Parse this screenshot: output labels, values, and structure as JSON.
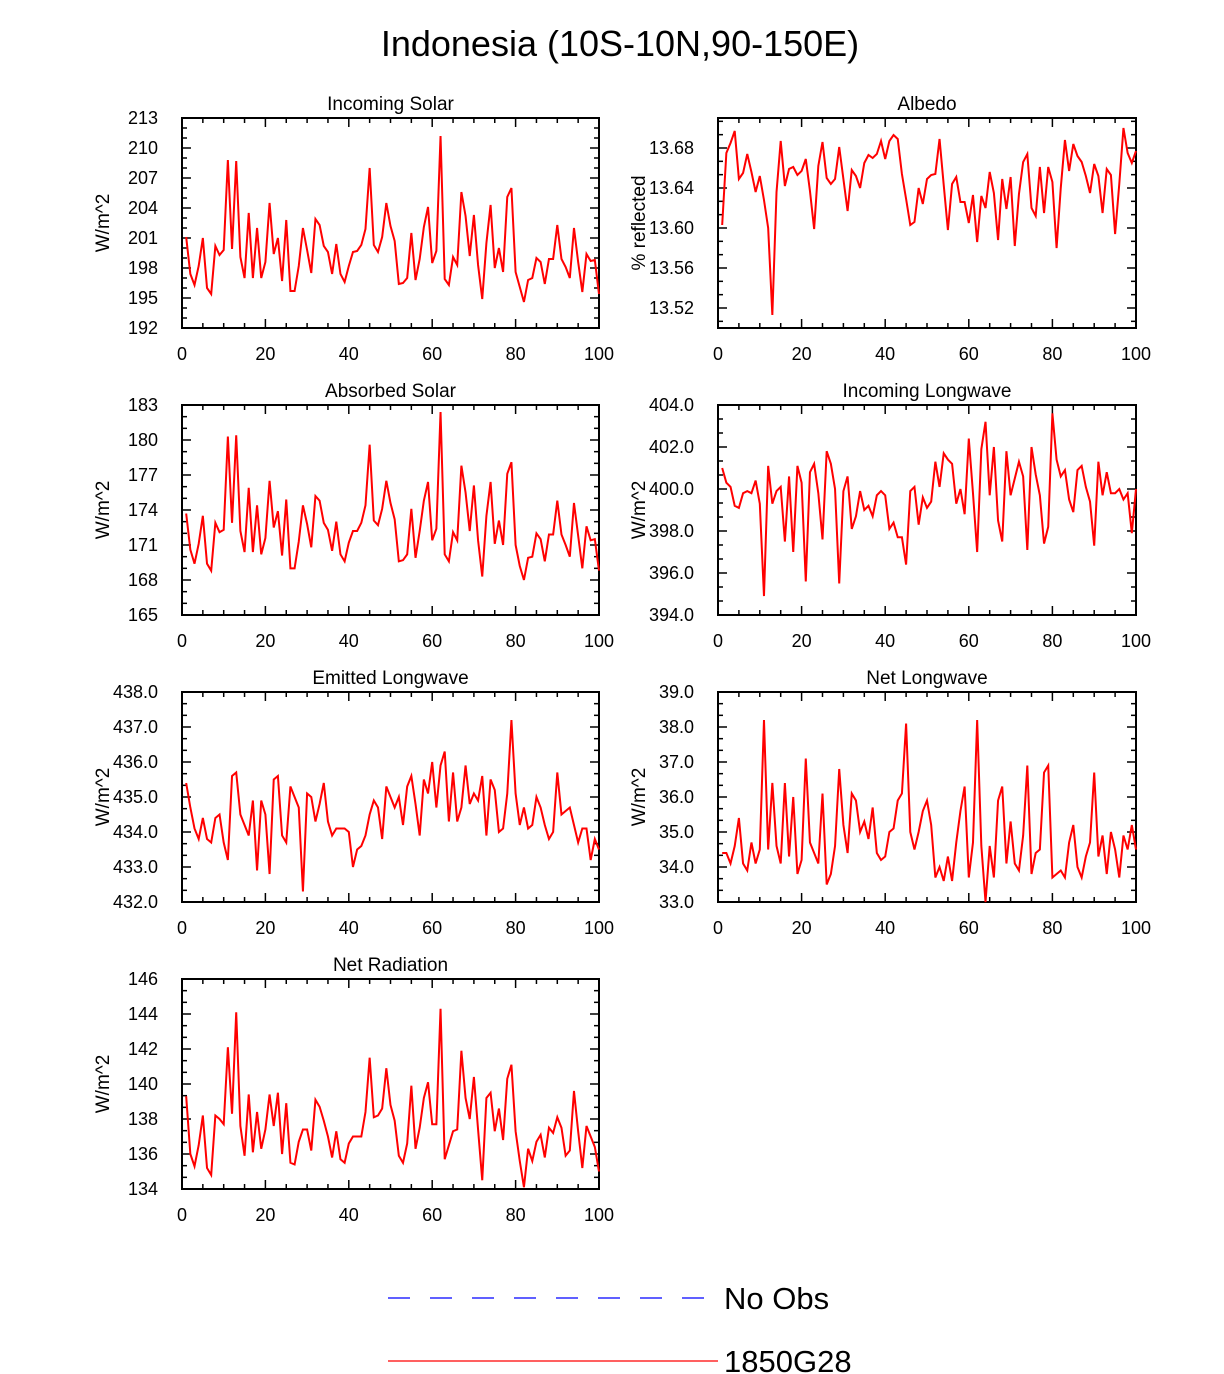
{
  "title": "Indonesia (10S-10N,90-150E)",
  "colors": {
    "model": "#ff0000",
    "obs": "#0000ff",
    "axis": "#000000"
  },
  "legend": {
    "entries": [
      {
        "label": "No Obs",
        "style": "dashed",
        "color": "#0000ff"
      },
      {
        "label": "1850G28",
        "style": "solid",
        "color": "#ff0000"
      }
    ]
  },
  "chart_data": [
    {
      "type": "line",
      "title": "Incoming Solar",
      "ylabel": "W/m^2",
      "xlim": [
        0,
        100
      ],
      "ylim": [
        192,
        213
      ],
      "xticks": [
        0,
        20,
        40,
        60,
        80,
        100
      ],
      "yticks": [
        192,
        195,
        198,
        201,
        204,
        207,
        210,
        213
      ],
      "ytick_labels": [
        "192",
        "195",
        "198",
        "201",
        "204",
        "207",
        "210",
        "213"
      ],
      "series": [
        {
          "name": "1850G28",
          "values": [
            201.1,
            197.4,
            196.3,
            198.2,
            201.0,
            196.0,
            195.4,
            200.2,
            199.3,
            199.8,
            208.8,
            199.9,
            208.7,
            199.1,
            197.0,
            203.5,
            197.0,
            202.0,
            197.0,
            198.6,
            204.5,
            199.4,
            201.0,
            196.7,
            202.8,
            195.7,
            195.7,
            198.2,
            202.0,
            199.8,
            197.5,
            202.9,
            202.3,
            200.2,
            199.6,
            197.4,
            200.4,
            197.4,
            196.6,
            198.2,
            199.6,
            199.7,
            200.3,
            201.9,
            208.0,
            200.3,
            199.6,
            201.1,
            204.5,
            202.2,
            200.7,
            196.4,
            196.5,
            197.0,
            201.5,
            196.8,
            198.9,
            202.1,
            204.1,
            198.5,
            199.7,
            211.2,
            196.9,
            196.3,
            199.1,
            198.3,
            205.6,
            203.2,
            199.2,
            203.3,
            198.3,
            194.9,
            200.5,
            204.3,
            198.0,
            200.0,
            197.6,
            205.1,
            206.0,
            197.6,
            196.1,
            194.6,
            196.8,
            197.0,
            199.0,
            198.6,
            196.4,
            198.9,
            198.9,
            202.3,
            198.9,
            198.1,
            197.0,
            202.0,
            198.6,
            195.6,
            199.4,
            198.7,
            198.8,
            195.4
          ]
        }
      ]
    },
    {
      "type": "line",
      "title": "Albedo",
      "ylabel": "% reflected",
      "xlim": [
        0,
        100
      ],
      "ylim": [
        13.5,
        13.71
      ],
      "xticks": [
        0,
        20,
        40,
        60,
        80,
        100
      ],
      "yticks": [
        13.52,
        13.56,
        13.6,
        13.64,
        13.68
      ],
      "ytick_labels": [
        "13.52",
        "13.56",
        "13.60",
        "13.64",
        "13.68"
      ],
      "series": [
        {
          "name": "1850G28",
          "values": [
            13.603,
            13.675,
            13.685,
            13.697,
            13.649,
            13.655,
            13.674,
            13.656,
            13.636,
            13.652,
            13.628,
            13.6,
            13.513,
            13.636,
            13.687,
            13.642,
            13.659,
            13.661,
            13.653,
            13.657,
            13.669,
            13.637,
            13.599,
            13.662,
            13.686,
            13.65,
            13.644,
            13.649,
            13.681,
            13.649,
            13.617,
            13.658,
            13.652,
            13.64,
            13.665,
            13.673,
            13.67,
            13.674,
            13.687,
            13.669,
            13.687,
            13.693,
            13.689,
            13.654,
            13.629,
            13.603,
            13.606,
            13.64,
            13.624,
            13.649,
            13.653,
            13.654,
            13.689,
            13.643,
            13.598,
            13.644,
            13.651,
            13.626,
            13.626,
            13.605,
            13.633,
            13.586,
            13.632,
            13.62,
            13.656,
            13.635,
            13.588,
            13.649,
            13.619,
            13.651,
            13.582,
            13.634,
            13.666,
            13.674,
            13.62,
            13.612,
            13.661,
            13.615,
            13.661,
            13.646,
            13.58,
            13.64,
            13.688,
            13.657,
            13.684,
            13.672,
            13.666,
            13.652,
            13.635,
            13.664,
            13.652,
            13.615,
            13.659,
            13.653,
            13.594,
            13.644,
            13.7,
            13.675,
            13.665,
            13.677
          ]
        }
      ]
    },
    {
      "type": "line",
      "title": "Absorbed Solar",
      "ylabel": "W/m^2",
      "xlim": [
        0,
        100
      ],
      "ylim": [
        165,
        183
      ],
      "xticks": [
        0,
        20,
        40,
        60,
        80,
        100
      ],
      "yticks": [
        165,
        168,
        171,
        174,
        177,
        180,
        183
      ],
      "ytick_labels": [
        "165",
        "168",
        "171",
        "174",
        "177",
        "180",
        "183"
      ],
      "series": [
        {
          "name": "1850G28",
          "values": [
            173.7,
            170.6,
            169.4,
            171.1,
            173.5,
            169.4,
            168.8,
            172.9,
            172.1,
            172.3,
            180.3,
            172.9,
            180.4,
            172.2,
            170.4,
            175.9,
            170.4,
            174.4,
            170.2,
            171.6,
            176.5,
            172.5,
            173.9,
            170.1,
            174.9,
            169.0,
            169.0,
            171.3,
            174.4,
            172.8,
            170.8,
            175.2,
            174.8,
            172.9,
            172.3,
            170.5,
            173.0,
            170.2,
            169.6,
            171.2,
            172.2,
            172.2,
            172.9,
            174.4,
            179.6,
            173.1,
            172.7,
            174.1,
            176.5,
            174.6,
            173.2,
            169.6,
            169.7,
            170.2,
            174.1,
            169.9,
            172.2,
            174.8,
            176.4,
            171.4,
            172.4,
            182.4,
            170.2,
            169.6,
            172.1,
            171.4,
            177.8,
            175.5,
            172.2,
            176.1,
            171.4,
            168.3,
            173.5,
            176.4,
            171.1,
            173.1,
            171.0,
            177.1,
            178.1,
            171.0,
            169.2,
            168.0,
            169.9,
            170.0,
            172.0,
            171.5,
            169.6,
            171.9,
            171.9,
            174.8,
            171.9,
            171.0,
            170.0,
            174.6,
            171.8,
            169.0,
            172.6,
            171.4,
            171.5,
            168.8
          ]
        }
      ]
    },
    {
      "type": "line",
      "title": "Incoming Longwave",
      "ylabel": "W/m^2",
      "xlim": [
        0,
        100
      ],
      "ylim": [
        394,
        404
      ],
      "xticks": [
        0,
        20,
        40,
        60,
        80,
        100
      ],
      "yticks": [
        394,
        396,
        398,
        400,
        402,
        404
      ],
      "ytick_labels": [
        "394.0",
        "396.0",
        "398.0",
        "400.0",
        "402.0",
        "404.0"
      ],
      "series": [
        {
          "name": "1850G28",
          "values": [
            401.0,
            400.3,
            400.1,
            399.2,
            399.1,
            399.8,
            399.9,
            399.8,
            400.4,
            399.3,
            394.9,
            401.1,
            399.3,
            399.9,
            400.1,
            397.5,
            400.6,
            397.0,
            401.1,
            400.3,
            395.6,
            400.8,
            401.2,
            399.8,
            397.6,
            401.8,
            401.2,
            400.0,
            395.5,
            399.9,
            400.6,
            398.1,
            398.7,
            399.9,
            399.0,
            399.2,
            398.7,
            399.7,
            399.9,
            399.7,
            398.1,
            398.4,
            397.7,
            397.7,
            396.4,
            399.9,
            400.1,
            398.3,
            399.6,
            399.1,
            399.4,
            401.3,
            400.1,
            401.7,
            401.4,
            401.2,
            399.3,
            400.0,
            398.8,
            402.4,
            399.8,
            397.0,
            401.9,
            403.2,
            399.7,
            402.0,
            398.5,
            397.5,
            401.8,
            399.7,
            400.5,
            401.3,
            400.6,
            397.1,
            402.0,
            400.7,
            399.7,
            397.4,
            398.2,
            403.6,
            401.4,
            400.6,
            400.9,
            399.5,
            398.9,
            400.9,
            401.1,
            400.1,
            399.4,
            397.3,
            401.3,
            399.7,
            400.8,
            399.8,
            399.8,
            400.0,
            399.5,
            399.8,
            397.9,
            400.0
          ]
        }
      ]
    },
    {
      "type": "line",
      "title": "Emitted Longwave",
      "ylabel": "W/m^2",
      "xlim": [
        0,
        100
      ],
      "ylim": [
        432,
        438
      ],
      "xticks": [
        0,
        20,
        40,
        60,
        80,
        100
      ],
      "yticks": [
        432,
        433,
        434,
        435,
        436,
        437,
        438
      ],
      "ytick_labels": [
        "432.0",
        "433.0",
        "434.0",
        "435.0",
        "436.0",
        "437.0",
        "438.0"
      ],
      "series": [
        {
          "name": "1850G28",
          "values": [
            435.4,
            434.7,
            434.1,
            433.8,
            434.4,
            433.8,
            433.7,
            434.4,
            434.5,
            433.7,
            433.2,
            435.6,
            435.7,
            434.5,
            434.2,
            433.9,
            434.9,
            432.9,
            434.9,
            434.5,
            432.8,
            435.5,
            435.6,
            433.9,
            433.7,
            435.3,
            435.0,
            434.7,
            432.3,
            435.1,
            435.0,
            434.3,
            434.8,
            435.4,
            434.3,
            433.9,
            434.1,
            434.1,
            434.1,
            434.0,
            433.0,
            433.5,
            433.6,
            433.9,
            434.5,
            434.9,
            434.7,
            433.8,
            435.3,
            435.0,
            434.7,
            435.0,
            434.2,
            435.3,
            435.6,
            434.8,
            433.9,
            435.5,
            435.1,
            436.0,
            434.7,
            435.9,
            436.3,
            434.3,
            435.7,
            434.3,
            434.7,
            435.9,
            434.8,
            435.1,
            434.9,
            435.6,
            433.9,
            435.5,
            435.2,
            434.0,
            434.1,
            435.1,
            437.2,
            435.1,
            434.2,
            434.7,
            434.1,
            434.2,
            435.0,
            434.7,
            434.2,
            433.8,
            434.0,
            435.7,
            434.5,
            434.6,
            434.7,
            434.2,
            433.7,
            434.1,
            434.1,
            433.2,
            433.8,
            433.5
          ]
        }
      ]
    },
    {
      "type": "line",
      "title": "Net Longwave",
      "ylabel": "W/m^2",
      "xlim": [
        0,
        100
      ],
      "ylim": [
        33,
        39
      ],
      "xticks": [
        0,
        20,
        40,
        60,
        80,
        100
      ],
      "yticks": [
        33,
        34,
        35,
        36,
        37,
        38,
        39
      ],
      "ytick_labels": [
        "33.0",
        "34.0",
        "35.0",
        "36.0",
        "37.0",
        "38.0",
        "39.0"
      ],
      "series": [
        {
          "name": "1850G28",
          "values": [
            34.4,
            34.4,
            34.1,
            34.6,
            35.4,
            34.1,
            33.9,
            34.7,
            34.1,
            34.5,
            38.2,
            34.5,
            36.4,
            34.6,
            34.1,
            36.4,
            34.3,
            36.0,
            33.8,
            34.2,
            37.1,
            34.7,
            34.4,
            34.1,
            36.1,
            33.5,
            33.8,
            34.6,
            36.8,
            35.2,
            34.4,
            36.1,
            35.9,
            35.0,
            35.3,
            34.8,
            35.7,
            34.4,
            34.2,
            34.3,
            35.0,
            35.1,
            35.9,
            36.1,
            38.1,
            35.0,
            34.5,
            35.0,
            35.6,
            35.9,
            35.2,
            33.7,
            34.0,
            33.6,
            34.3,
            33.6,
            34.7,
            35.6,
            36.3,
            33.7,
            34.7,
            38.2,
            34.6,
            33.0,
            34.6,
            33.7,
            35.9,
            36.3,
            34.1,
            35.3,
            34.1,
            33.9,
            34.9,
            36.9,
            33.8,
            34.4,
            34.5,
            36.7,
            36.9,
            33.7,
            33.8,
            33.9,
            33.7,
            34.7,
            35.2,
            34.0,
            33.7,
            34.3,
            34.7,
            36.7,
            34.3,
            34.9,
            33.8,
            35.0,
            34.5,
            33.7,
            34.9,
            34.5,
            35.2,
            34.5
          ]
        }
      ]
    },
    {
      "type": "line",
      "title": "Net Radiation",
      "ylabel": "W/m^2",
      "xlim": [
        0,
        100
      ],
      "ylim": [
        134,
        146
      ],
      "xticks": [
        0,
        20,
        40,
        60,
        80,
        100
      ],
      "yticks": [
        134,
        136,
        138,
        140,
        142,
        144,
        146
      ],
      "ytick_labels": [
        "134",
        "136",
        "138",
        "140",
        "142",
        "144",
        "146"
      ],
      "series": [
        {
          "name": "1850G28",
          "values": [
            139.3,
            136.0,
            135.3,
            136.5,
            138.2,
            135.2,
            134.8,
            138.2,
            138.0,
            137.7,
            142.1,
            138.3,
            144.1,
            137.6,
            135.9,
            139.4,
            136.1,
            138.4,
            136.3,
            137.4,
            139.4,
            137.6,
            139.5,
            136.0,
            138.9,
            135.5,
            135.4,
            136.7,
            137.4,
            137.4,
            136.2,
            139.1,
            138.7,
            137.9,
            137.0,
            135.8,
            137.3,
            135.7,
            135.5,
            136.6,
            137.0,
            137.0,
            137.0,
            138.4,
            141.5,
            138.1,
            138.2,
            138.6,
            140.9,
            138.8,
            137.9,
            135.9,
            135.5,
            136.6,
            139.9,
            136.3,
            137.5,
            139.2,
            140.1,
            137.7,
            137.7,
            144.3,
            135.7,
            136.5,
            137.3,
            137.4,
            141.9,
            139.2,
            138.0,
            140.4,
            137.4,
            134.5,
            139.2,
            139.5,
            137.3,
            138.6,
            136.8,
            140.3,
            141.1,
            137.3,
            135.6,
            134.1,
            136.3,
            135.6,
            136.7,
            137.1,
            135.8,
            137.5,
            137.2,
            138.1,
            137.5,
            135.9,
            136.2,
            139.6,
            137.3,
            135.2,
            137.6,
            137.0,
            136.4,
            135.0
          ]
        }
      ]
    }
  ]
}
